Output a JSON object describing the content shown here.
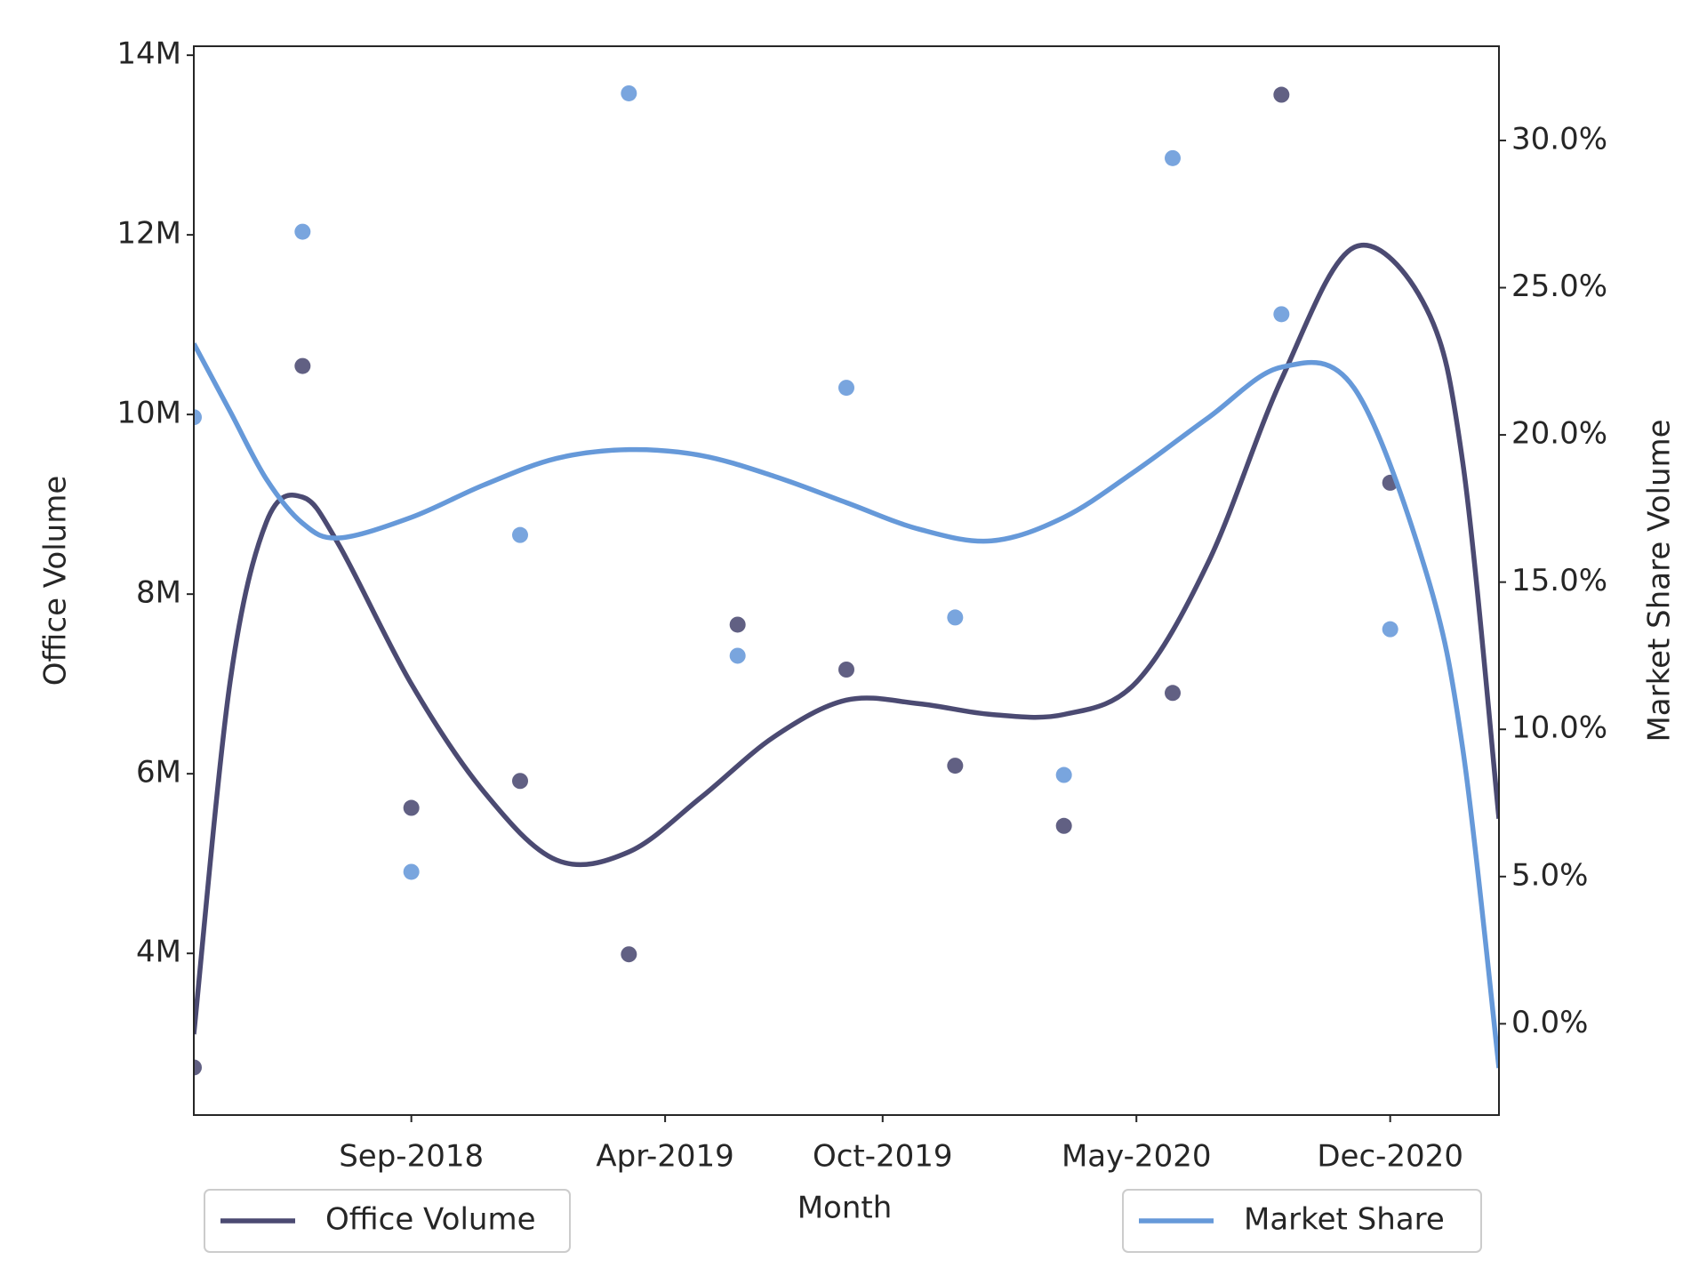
{
  "chart_data": {
    "type": "scatter",
    "xlabel": "Month",
    "ylabel": "Office Volume",
    "y2label": "Market Share Volume",
    "xlim": [
      "2018-03",
      "2021-03"
    ],
    "xticks": [
      {
        "value": "2018-09",
        "label": "Sep-2018"
      },
      {
        "value": "2019-04",
        "label": "Apr-2019"
      },
      {
        "value": "2019-10",
        "label": "Oct-2019"
      },
      {
        "value": "2020-05",
        "label": "May-2020"
      },
      {
        "value": "2020-12",
        "label": "Dec-2020"
      }
    ],
    "ylim": [
      2200000,
      14100000
    ],
    "yticks": [
      {
        "value": 4000000,
        "label": "4M"
      },
      {
        "value": 6000000,
        "label": "6M"
      },
      {
        "value": 8000000,
        "label": "8M"
      },
      {
        "value": 10000000,
        "label": "10M"
      },
      {
        "value": 12000000,
        "label": "12M"
      },
      {
        "value": 14000000,
        "label": "14M"
      }
    ],
    "y2lim": [
      -3.1,
      33.2
    ],
    "y2ticks": [
      {
        "value": 0,
        "label": "0.0%"
      },
      {
        "value": 5,
        "label": "5.0%"
      },
      {
        "value": 10,
        "label": "10.0%"
      },
      {
        "value": 15,
        "label": "15.0%"
      },
      {
        "value": 20,
        "label": "20.0%"
      },
      {
        "value": 25,
        "label": "25.0%"
      },
      {
        "value": 30,
        "label": "30.0%"
      }
    ],
    "series": [
      {
        "type": "scatter",
        "color": "#4b4a72",
        "x": [
          "2018-03",
          "2018-06",
          "2018-09",
          "2018-12",
          "2019-03",
          "2019-06",
          "2019-09",
          "2019-12",
          "2020-03",
          "2020-06",
          "2020-09",
          "2020-12"
        ],
        "values": [
          2730000,
          10540000,
          5620000,
          5920000,
          3990000,
          7660000,
          7160000,
          6090000,
          5420000,
          6900000,
          13560000,
          9240000
        ]
      },
      {
        "type": "scatter",
        "color": "#6699d9",
        "axis": "y2",
        "x": [
          "2018-03",
          "2018-06",
          "2018-09",
          "2018-12",
          "2019-03",
          "2019-06",
          "2019-09",
          "2019-12",
          "2020-03",
          "2020-06",
          "2020-09",
          "2020-12"
        ],
        "values": [
          20.6,
          26.9,
          5.16,
          16.6,
          31.6,
          12.5,
          21.6,
          13.8,
          8.45,
          29.4,
          24.1,
          13.4
        ]
      },
      {
        "type": "line",
        "name": "Office Volume",
        "color": "#4b4a72",
        "x": [
          "2018-03",
          "2018-04",
          "2018-05",
          "2018-06",
          "2018-07",
          "2018-09",
          "2018-11",
          "2019-01",
          "2019-03",
          "2019-05",
          "2019-07",
          "2019-09",
          "2019-11",
          "2020-01",
          "2020-03",
          "2020-05",
          "2020-07",
          "2020-09",
          "2020-11",
          "2021-01",
          "2021-02",
          "2021-03"
        ],
        "values": [
          3100000,
          7020000,
          8800000,
          9080000,
          8550000,
          7000000,
          5800000,
          5040000,
          5130000,
          5740000,
          6410000,
          6820000,
          6780000,
          6660000,
          6660000,
          7020000,
          8370000,
          10390000,
          11860000,
          11180000,
          9470000,
          5500000
        ]
      },
      {
        "type": "line",
        "name": "Market Share",
        "color": "#6699d9",
        "axis": "y2",
        "x": [
          "2018-03",
          "2018-04",
          "2018-05",
          "2018-06",
          "2018-07",
          "2018-09",
          "2018-11",
          "2019-01",
          "2019-03",
          "2019-05",
          "2019-07",
          "2019-09",
          "2019-11",
          "2020-01",
          "2020-03",
          "2020-05",
          "2020-07",
          "2020-09",
          "2020-11",
          "2021-01",
          "2021-02",
          "2021-03"
        ],
        "values": [
          23.1,
          20.8,
          18.5,
          17.0,
          16.5,
          17.2,
          18.3,
          19.2,
          19.5,
          19.3,
          18.6,
          17.7,
          16.8,
          16.4,
          17.2,
          18.8,
          20.6,
          22.3,
          21.6,
          15.3,
          9.35,
          -1.5
        ]
      }
    ]
  }
}
